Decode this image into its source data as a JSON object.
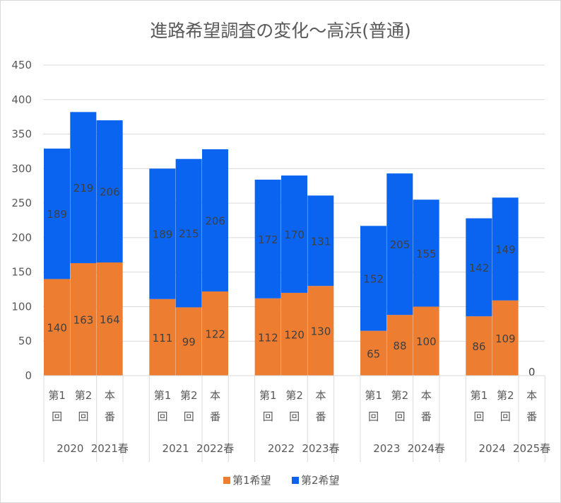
{
  "chart_data": {
    "type": "bar",
    "stacked": true,
    "title": "進路希望調査の変化～高浜(普通)",
    "ylim": [
      0,
      450
    ],
    "yticks": [
      0,
      50,
      100,
      150,
      200,
      250,
      300,
      350,
      400,
      450
    ],
    "grid": true,
    "legend_position": "bottom",
    "groups": [
      {
        "year": "2020",
        "season": "2021春",
        "categories": [
          "第1回",
          "第2回",
          "本番"
        ]
      },
      {
        "year": "2021",
        "season": "2022春",
        "categories": [
          "第1回",
          "第2回",
          "本番"
        ]
      },
      {
        "year": "2022",
        "season": "2023春",
        "categories": [
          "第1回",
          "第2回",
          "本番"
        ]
      },
      {
        "year": "2023",
        "season": "2024春",
        "categories": [
          "第1回",
          "第2回",
          "本番"
        ]
      },
      {
        "year": "2024",
        "season": "2025春",
        "categories": [
          "第1回",
          "第2回",
          "本番"
        ]
      }
    ],
    "series": [
      {
        "name": "第1希望",
        "color": "#ed7d31",
        "values": [
          [
            140,
            163,
            164
          ],
          [
            111,
            99,
            122
          ],
          [
            112,
            120,
            130
          ],
          [
            65,
            88,
            100
          ],
          [
            86,
            109,
            0
          ]
        ]
      },
      {
        "name": "第2希望",
        "color": "#0a64f0",
        "values": [
          [
            189,
            219,
            206
          ],
          [
            189,
            215,
            206
          ],
          [
            172,
            170,
            131
          ],
          [
            152,
            205,
            155
          ],
          [
            142,
            149,
            null
          ]
        ]
      }
    ]
  }
}
